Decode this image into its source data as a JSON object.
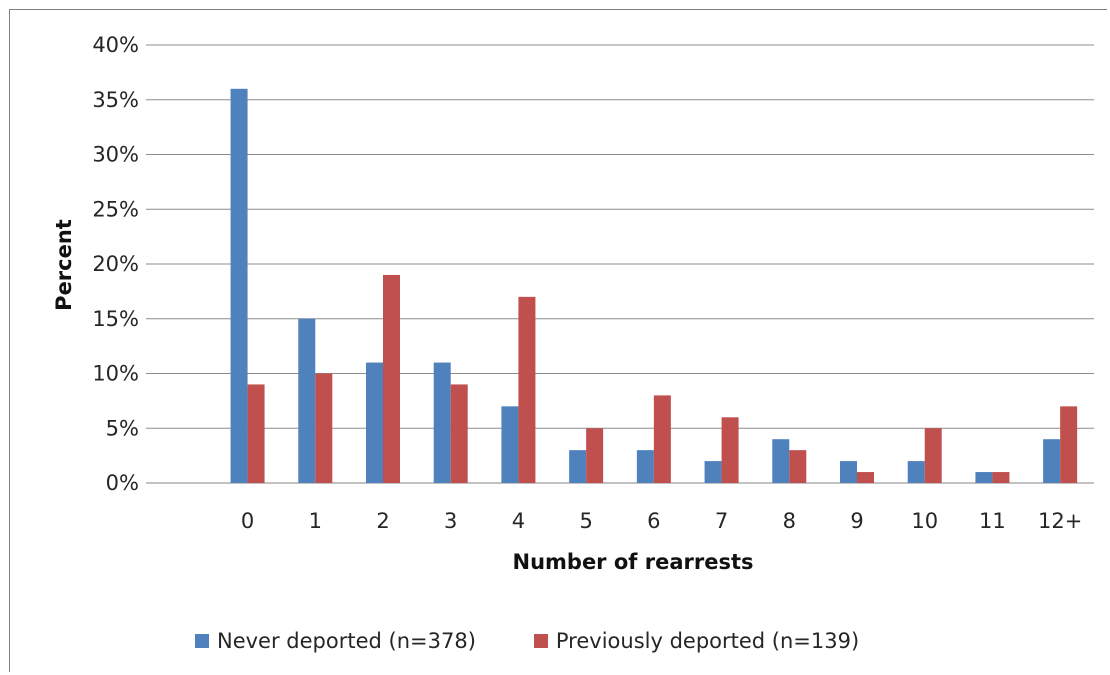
{
  "chart_data": {
    "type": "bar",
    "title": "",
    "xlabel": "Number of rearrests",
    "ylabel": "Percent",
    "categories": [
      "",
      "0",
      "1",
      "2",
      "3",
      "4",
      "5",
      "6",
      "7",
      "8",
      "9",
      "10",
      "11",
      "12+"
    ],
    "series": [
      {
        "name": "Never deported (n=378)",
        "color": "#4F81BD",
        "values": [
          null,
          36,
          15,
          11,
          11,
          7,
          3,
          3,
          2,
          4,
          2,
          2,
          1,
          4
        ]
      },
      {
        "name": "Previously deported (n=139)",
        "color": "#C0504D",
        "values": [
          null,
          9,
          10,
          19,
          9,
          17,
          5,
          8,
          6,
          3,
          1,
          5,
          1,
          7
        ]
      }
    ],
    "ylim": [
      0,
      40
    ],
    "yticks": [
      "0%",
      "5%",
      "10%",
      "15%",
      "20%",
      "25%",
      "30%",
      "35%",
      "40%"
    ],
    "grid": true,
    "legend_position": "bottom",
    "colors": {
      "gridline": "#8C8C8C",
      "axis": "#868686"
    }
  }
}
